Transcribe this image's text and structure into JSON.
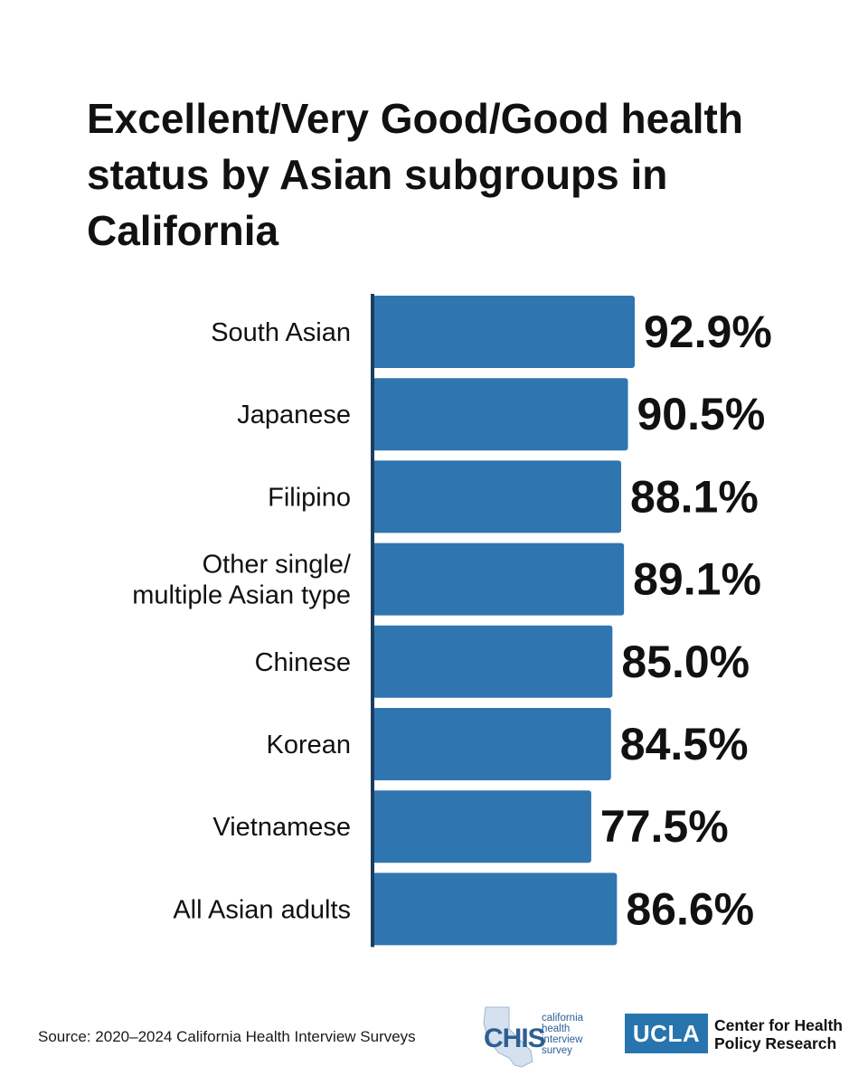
{
  "chart_data": {
    "type": "bar",
    "orientation": "horizontal",
    "title": "Excellent/Very Good/Good health status by Asian subgroups in California",
    "categories": [
      [
        "South Asian"
      ],
      [
        "Japanese"
      ],
      [
        "Filipino"
      ],
      [
        "Other single/",
        "multiple Asian type"
      ],
      [
        "Chinese"
      ],
      [
        "Korean"
      ],
      [
        "Vietnamese"
      ],
      [
        "All Asian adults"
      ]
    ],
    "values": [
      92.9,
      90.5,
      88.1,
      89.1,
      85.0,
      84.5,
      77.5,
      86.6
    ],
    "value_labels": [
      "92.9%",
      "90.5%",
      "88.1%",
      "89.1%",
      "85.0%",
      "84.5%",
      "77.5%",
      "86.6%"
    ],
    "bar_color": "#2f75b0",
    "axis_color": "#1c3d5e",
    "grid": false,
    "legend": "none"
  },
  "footer": {
    "source": "Source: 2020–2024 California Health Interview Surveys",
    "chis_word": "CHIS",
    "chis_sub": [
      "california",
      "health",
      "interview",
      "survey"
    ],
    "ucla": "UCLA",
    "center_lines": [
      "Center for Health",
      "Policy Research"
    ]
  }
}
